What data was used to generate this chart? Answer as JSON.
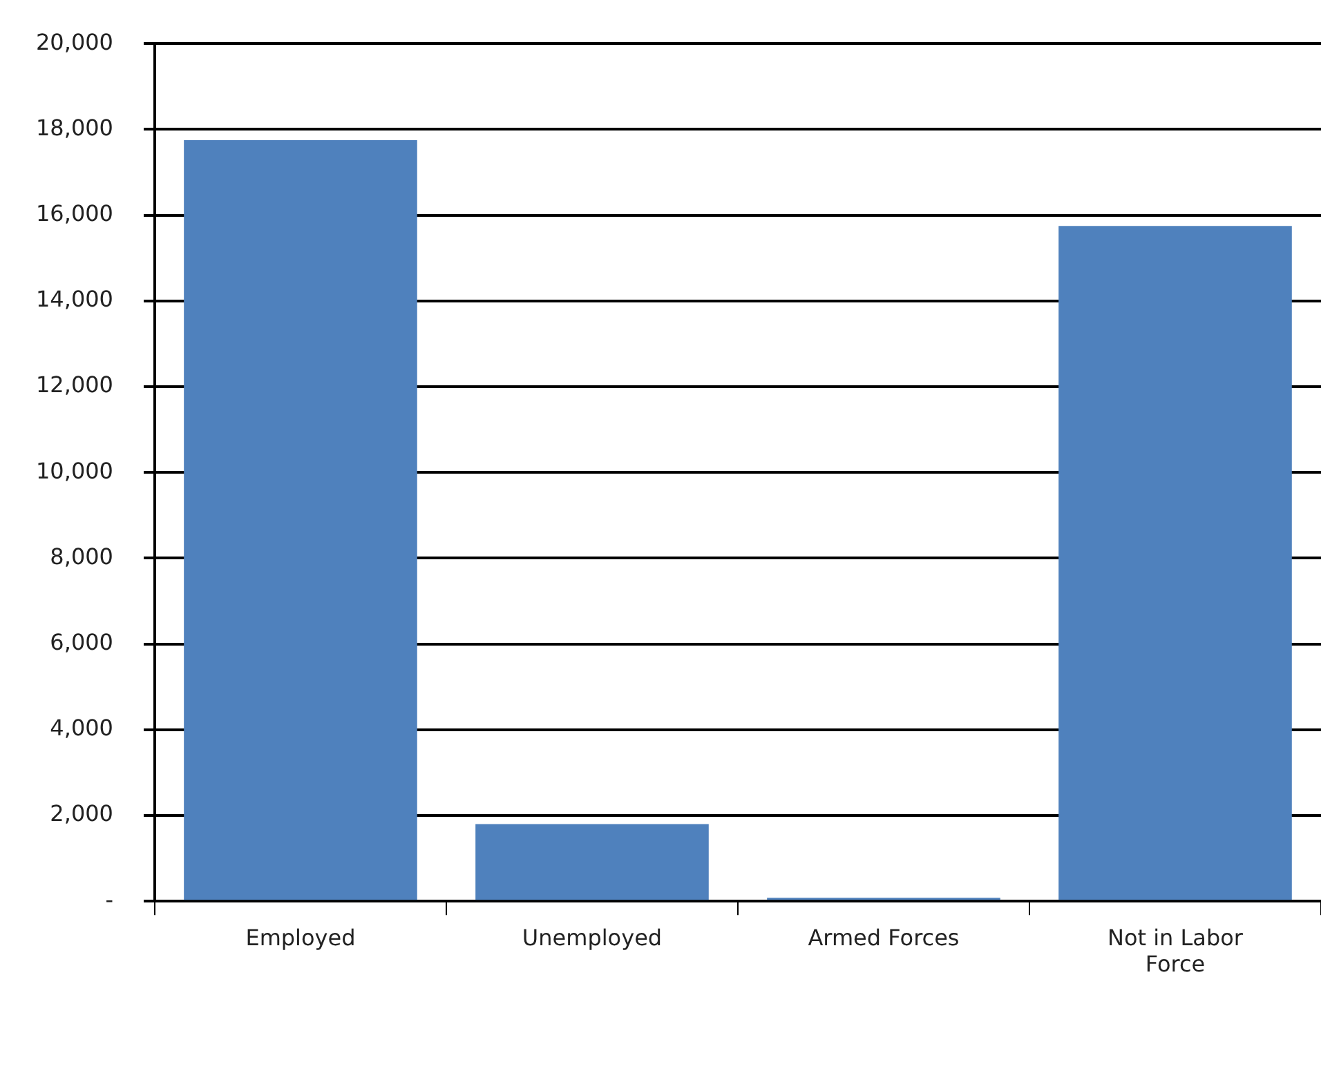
{
  "chart_data": {
    "type": "bar",
    "categories": [
      "Employed",
      "Unemployed",
      "Armed Forces",
      "Not in Labor Force"
    ],
    "values": [
      17750,
      1800,
      80,
      15750
    ],
    "color": "#4f81bd",
    "ylim": [
      0,
      20000
    ],
    "yticks": [
      {
        "value": 0,
        "label": "-"
      },
      {
        "value": 2000,
        "label": "2,000"
      },
      {
        "value": 4000,
        "label": "4,000"
      },
      {
        "value": 6000,
        "label": "6,000"
      },
      {
        "value": 8000,
        "label": "8,000"
      },
      {
        "value": 10000,
        "label": "10,000"
      },
      {
        "value": 12000,
        "label": "12,000"
      },
      {
        "value": 14000,
        "label": "14,000"
      },
      {
        "value": 16000,
        "label": "16,000"
      },
      {
        "value": 18000,
        "label": "18,000"
      },
      {
        "value": 20000,
        "label": "20,000"
      }
    ],
    "grid": "y"
  }
}
